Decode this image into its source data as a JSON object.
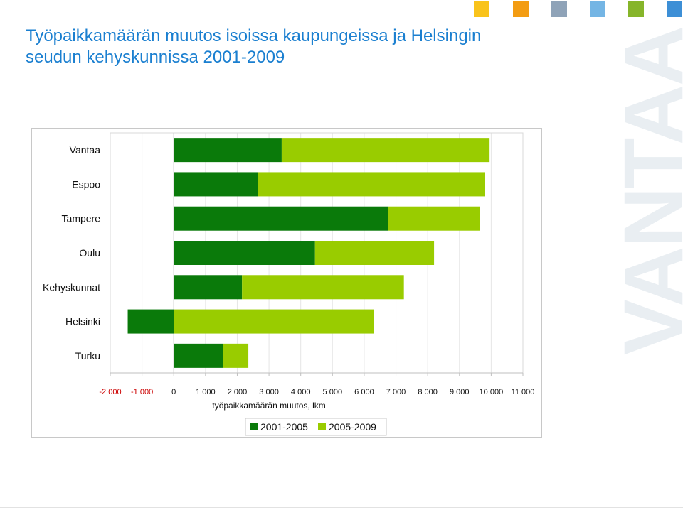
{
  "title_line1": "Työpaikkamäärän muutos isoissa kaupungeissa ja Helsingin",
  "title_line2": "seudun kehyskunnissa 2001-2009",
  "brand_squares": [
    "#f9c31b",
    "#f39c12",
    "#8fa3b8",
    "#74b5e4",
    "#86b52a",
    "#3d8fd6"
  ],
  "watermark": "VANTAA",
  "colors": {
    "title": "#1a7fd0",
    "series_dark": "#0a7a0a",
    "series_light": "#99cc00",
    "negative_tick": "#cc0000"
  },
  "chart_data": {
    "type": "bar",
    "orientation": "horizontal",
    "stacked": true,
    "categories": [
      "Vantaa",
      "Espoo",
      "Tampere",
      "Oulu",
      "Kehyskunnat",
      "Helsinki",
      "Turku"
    ],
    "series": [
      {
        "name": "2001-2005",
        "values": [
          3400,
          2650,
          6750,
          4450,
          2150,
          -1450,
          1550
        ]
      },
      {
        "name": "2005-2009",
        "values": [
          6550,
          7150,
          2900,
          3750,
          5100,
          6300,
          800
        ]
      }
    ],
    "xlabel": "työpaikkamäärän muutos, lkm",
    "xlim": [
      -2000,
      11000
    ],
    "x_ticks": [
      -2000,
      -1000,
      0,
      1000,
      2000,
      3000,
      4000,
      5000,
      6000,
      7000,
      8000,
      9000,
      10000,
      11000
    ],
    "x_tick_labels": [
      "-2 000",
      "-1 000",
      "0",
      "1 000",
      "2 000",
      "3 000",
      "4 000",
      "5 000",
      "6 000",
      "7 000",
      "8 000",
      "9 000",
      "10 000",
      "11 000"
    ],
    "grid": true,
    "legend_position": "bottom"
  }
}
